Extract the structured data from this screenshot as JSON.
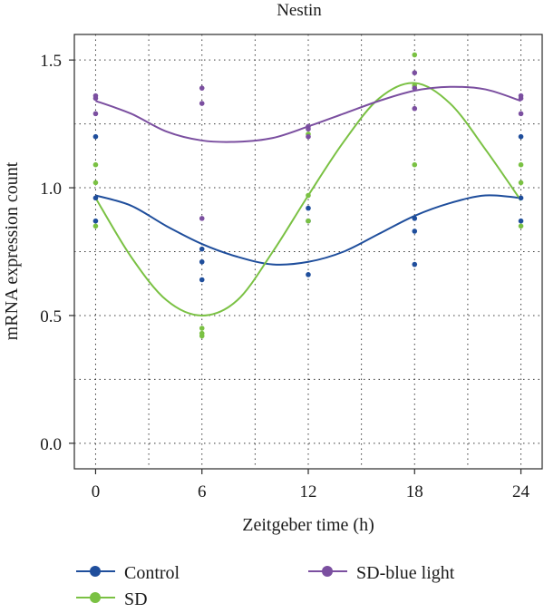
{
  "chart_data": {
    "type": "scatter",
    "title": "Nestin",
    "xlabel": "Zeitgeber time (h)",
    "ylabel": "mRNA expression count",
    "x_ticks": [
      0,
      6,
      12,
      18,
      24
    ],
    "x_tick_labels": [
      "0",
      "6",
      "12",
      "18",
      "24"
    ],
    "y_ticks": [
      0.0,
      0.5,
      1.0,
      1.5
    ],
    "y_tick_labels": [
      "0.0",
      "0.5",
      "1.0",
      "1.5"
    ],
    "xlim": [
      -1.2,
      25.2
    ],
    "ylim": [
      -0.1,
      1.6
    ],
    "grid": true,
    "legend_position": "bottom",
    "series": [
      {
        "name": "Control",
        "color": "#1f4e9c",
        "points": [
          {
            "x": 0,
            "y": 1.2
          },
          {
            "x": 0,
            "y": 0.96
          },
          {
            "x": 0,
            "y": 0.87
          },
          {
            "x": 6,
            "y": 0.76
          },
          {
            "x": 6,
            "y": 0.71
          },
          {
            "x": 6,
            "y": 0.64
          },
          {
            "x": 12,
            "y": 0.92
          },
          {
            "x": 12,
            "y": 0.87
          },
          {
            "x": 12,
            "y": 0.66
          },
          {
            "x": 18,
            "y": 0.88
          },
          {
            "x": 18,
            "y": 0.83
          },
          {
            "x": 18,
            "y": 0.7
          },
          {
            "x": 24,
            "y": 1.2
          },
          {
            "x": 24,
            "y": 0.96
          },
          {
            "x": 24,
            "y": 0.87
          }
        ],
        "fit": [
          {
            "x": 0,
            "y": 0.97
          },
          {
            "x": 2,
            "y": 0.93
          },
          {
            "x": 4,
            "y": 0.85
          },
          {
            "x": 6,
            "y": 0.78
          },
          {
            "x": 8,
            "y": 0.73
          },
          {
            "x": 10,
            "y": 0.7
          },
          {
            "x": 12,
            "y": 0.71
          },
          {
            "x": 14,
            "y": 0.75
          },
          {
            "x": 16,
            "y": 0.82
          },
          {
            "x": 18,
            "y": 0.89
          },
          {
            "x": 20,
            "y": 0.94
          },
          {
            "x": 22,
            "y": 0.97
          },
          {
            "x": 24,
            "y": 0.96
          }
        ]
      },
      {
        "name": "SD",
        "color": "#7ac143",
        "points": [
          {
            "x": 0,
            "y": 1.09
          },
          {
            "x": 0,
            "y": 1.02
          },
          {
            "x": 0,
            "y": 0.85
          },
          {
            "x": 6,
            "y": 0.45
          },
          {
            "x": 6,
            "y": 0.43
          },
          {
            "x": 6,
            "y": 0.42
          },
          {
            "x": 12,
            "y": 1.21
          },
          {
            "x": 12,
            "y": 0.97
          },
          {
            "x": 12,
            "y": 0.87
          },
          {
            "x": 18,
            "y": 1.52
          },
          {
            "x": 18,
            "y": 1.4
          },
          {
            "x": 18,
            "y": 1.09
          },
          {
            "x": 24,
            "y": 1.09
          },
          {
            "x": 24,
            "y": 1.02
          },
          {
            "x": 24,
            "y": 0.85
          }
        ],
        "fit": [
          {
            "x": 0,
            "y": 0.96
          },
          {
            "x": 2,
            "y": 0.73
          },
          {
            "x": 4,
            "y": 0.56
          },
          {
            "x": 6,
            "y": 0.5
          },
          {
            "x": 8,
            "y": 0.56
          },
          {
            "x": 10,
            "y": 0.75
          },
          {
            "x": 12,
            "y": 0.97
          },
          {
            "x": 14,
            "y": 1.18
          },
          {
            "x": 16,
            "y": 1.35
          },
          {
            "x": 18,
            "y": 1.41
          },
          {
            "x": 20,
            "y": 1.33
          },
          {
            "x": 22,
            "y": 1.15
          },
          {
            "x": 24,
            "y": 0.95
          }
        ]
      },
      {
        "name": "SD-blue light",
        "color": "#7b4fa0",
        "points": [
          {
            "x": 0,
            "y": 1.36
          },
          {
            "x": 0,
            "y": 1.35
          },
          {
            "x": 0,
            "y": 1.29
          },
          {
            "x": 6,
            "y": 1.39
          },
          {
            "x": 6,
            "y": 1.33
          },
          {
            "x": 6,
            "y": 0.88
          },
          {
            "x": 12,
            "y": 1.24
          },
          {
            "x": 12,
            "y": 1.23
          },
          {
            "x": 12,
            "y": 1.2
          },
          {
            "x": 18,
            "y": 1.45
          },
          {
            "x": 18,
            "y": 1.39
          },
          {
            "x": 18,
            "y": 1.31
          },
          {
            "x": 24,
            "y": 1.36
          },
          {
            "x": 24,
            "y": 1.35
          },
          {
            "x": 24,
            "y": 1.29
          }
        ],
        "fit": [
          {
            "x": 0,
            "y": 1.34
          },
          {
            "x": 2,
            "y": 1.29
          },
          {
            "x": 4,
            "y": 1.22
          },
          {
            "x": 6,
            "y": 1.185
          },
          {
            "x": 8,
            "y": 1.18
          },
          {
            "x": 10,
            "y": 1.195
          },
          {
            "x": 12,
            "y": 1.24
          },
          {
            "x": 14,
            "y": 1.29
          },
          {
            "x": 16,
            "y": 1.34
          },
          {
            "x": 18,
            "y": 1.38
          },
          {
            "x": 20,
            "y": 1.395
          },
          {
            "x": 22,
            "y": 1.385
          },
          {
            "x": 24,
            "y": 1.34
          }
        ]
      }
    ]
  }
}
